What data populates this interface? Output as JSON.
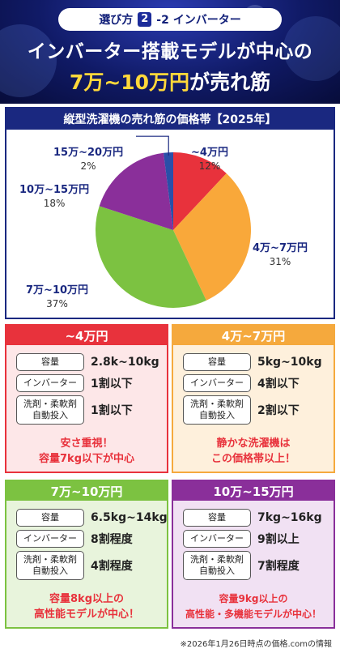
{
  "header": {
    "pill_prefix": "選び方",
    "pill_num": "2",
    "pill_suffix": "-2 インバーター",
    "title_line1": "インバーター搭載モデルが中心の",
    "title_line2_highlight": "7万~10万円",
    "title_line2_rest": "が売れ筋"
  },
  "chart_data": {
    "type": "pie",
    "title": "縦型洗濯機の売れ筋の価格帯【2025年】",
    "slices": [
      {
        "label": "~4万円",
        "pct_label": "12%",
        "value": 12,
        "color": "#e8323c"
      },
      {
        "label": "4万~7万円",
        "pct_label": "31%",
        "value": 31,
        "color": "#f9a83a"
      },
      {
        "label": "7万~10万円",
        "pct_label": "37%",
        "value": 37,
        "color": "#7cc241"
      },
      {
        "label": "10万~15万円",
        "pct_label": "18%",
        "value": 18,
        "color": "#8a2f9a"
      },
      {
        "label": "15万~20万円",
        "pct_label": "2%",
        "value": 2,
        "color": "#2a4fa8"
      }
    ]
  },
  "row_labels": {
    "capacity": "容量",
    "inverter": "インバーター",
    "auto_dose_1": "洗剤・柔軟剤",
    "auto_dose_2": "自動投入"
  },
  "cards": [
    {
      "title": "~4万円",
      "capacity": "2.8k~10kg",
      "inverter": "1割以下",
      "auto_dose": "1割以下",
      "note1": "安さ重視！",
      "note2": "容量7kg以下が中心",
      "head_color": "#e8323c",
      "bg_color": "#fde7e8",
      "note_color": "#e8323c"
    },
    {
      "title": "4万~7万円",
      "capacity": "5kg~10kg",
      "inverter": "4割以下",
      "auto_dose": "2割以下",
      "note1": "静かな洗濯機は",
      "note2": "この価格帯以上！",
      "head_color": "#f5a93d",
      "bg_color": "#fef0dc",
      "note_color": "#e8323c"
    },
    {
      "title": "7万~10万円",
      "capacity": "6.5kg~14kg",
      "inverter": "8割程度",
      "auto_dose": "4割程度",
      "note1": "容量8kg以上の",
      "note2": "高性能モデルが中心！",
      "head_color": "#7cc241",
      "bg_color": "#e8f4dc",
      "note_color": "#e8323c"
    },
    {
      "title": "10万~15万円",
      "capacity": "7kg~16kg",
      "inverter": "9割以上",
      "auto_dose": "7割程度",
      "note1": "容量9kg以上の",
      "note2": "高性能・多機能モデルが中心！",
      "head_color": "#8a2f9a",
      "bg_color": "#f1e1f3",
      "note_color": "#e8323c"
    }
  ],
  "footnote": "※2026年1月26日時点の価格.comの情報"
}
